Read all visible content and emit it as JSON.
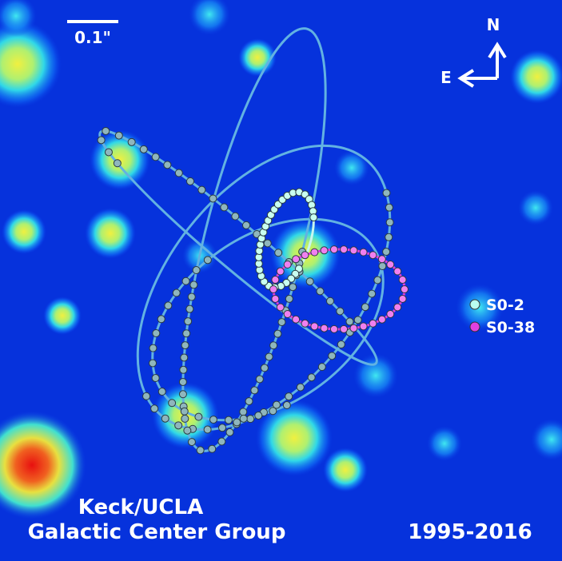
{
  "scale_bar": {
    "label": "0.1\""
  },
  "compass": {
    "north": "N",
    "east": "E"
  },
  "legend": [
    {
      "label": "S0-2"
    },
    {
      "label": "S0-38"
    }
  ],
  "credit": {
    "line1": "Keck/UCLA",
    "line2": "Galactic Center Group"
  },
  "date_range": "1995-2016"
}
